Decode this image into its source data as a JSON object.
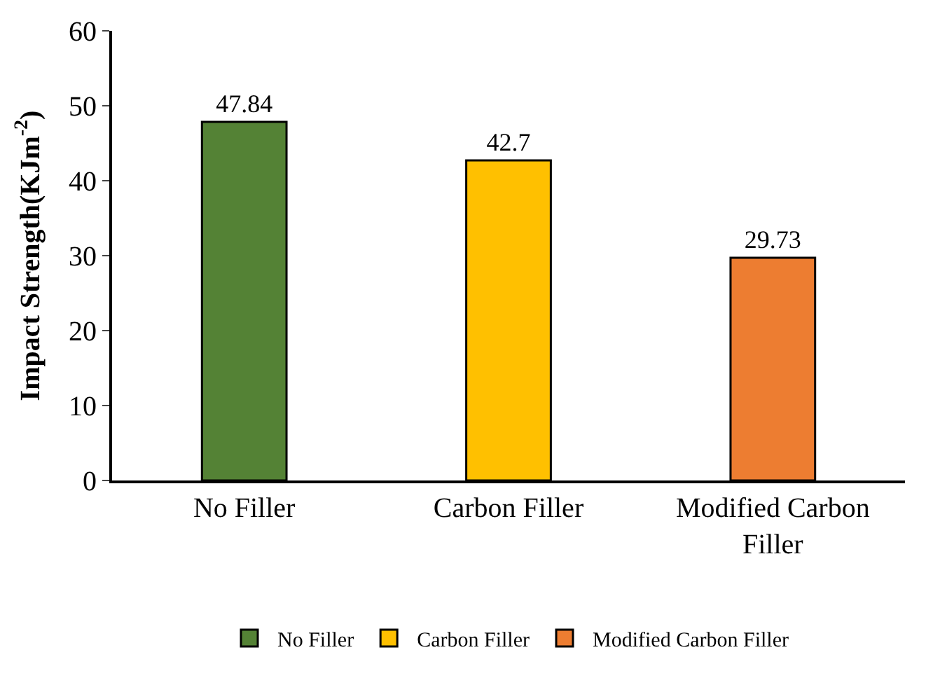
{
  "chart_data": {
    "type": "bar",
    "ylabel": "Impact Strength(KJm$^{-2}$)",
    "categories": [
      "No Filler",
      "Carbon Filler",
      "Modified Carbon Filler"
    ],
    "series": [
      {
        "name": "No Filler",
        "color": "#548235",
        "values": [
          47.84,
          null,
          null
        ]
      },
      {
        "name": "Carbon Filler",
        "color": "#ffc000",
        "values": [
          null,
          42.7,
          null
        ]
      },
      {
        "name": "Modified Carbon Filler",
        "color": "#ed7d31",
        "values": [
          null,
          null,
          29.73
        ]
      }
    ],
    "ylim": [
      0,
      60
    ],
    "yticks": [
      0,
      10,
      20,
      30,
      40,
      50,
      60
    ],
    "data_labels": true,
    "grid": false,
    "legend": "bottom"
  }
}
